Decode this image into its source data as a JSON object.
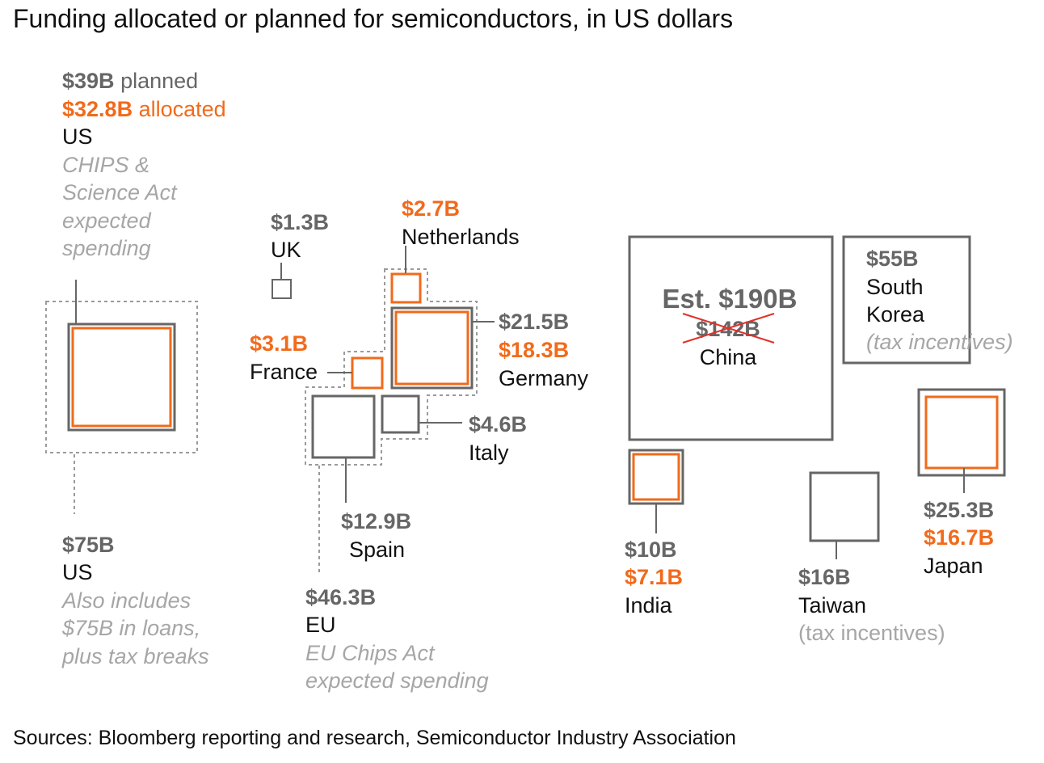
{
  "title": "Funding allocated or planned for semiconductors, in US dollars",
  "source": "Sources: Bloomberg reporting and research, Semiconductor Industry Association",
  "colors": {
    "allocated": "#f26a1b",
    "planned": "#666666",
    "note": "#a6a6a6"
  },
  "chart_data": {
    "type": "proportional squares",
    "entries": [
      {
        "region": "US",
        "planned_label": "$39B",
        "planned_word": "planned",
        "allocated_label": "$32.8B",
        "allocated_word": "allocated",
        "note": [
          "CHIPS &",
          "Science Act",
          "expected",
          "spending"
        ],
        "planned": 39,
        "allocated": 32.8
      },
      {
        "region": "US",
        "total_label": "$75B",
        "note": [
          "Also includes",
          "$75B in loans,",
          "plus tax breaks"
        ],
        "total": 75
      },
      {
        "region": "UK",
        "planned_label": "$1.3B",
        "planned": 1.3
      },
      {
        "region": "Netherlands",
        "allocated_label": "$2.7B",
        "allocated": 2.7
      },
      {
        "region": "France",
        "allocated_label": "$3.1B",
        "allocated": 3.1
      },
      {
        "region": "Germany",
        "planned_label": "$21.5B",
        "allocated_label": "$18.3B",
        "planned": 21.5,
        "allocated": 18.3
      },
      {
        "region": "Italy",
        "planned_label": "$4.6B",
        "planned": 4.6
      },
      {
        "region": "Spain",
        "planned_label": "$12.9B",
        "planned": 12.9
      },
      {
        "region": "EU",
        "total_label": "$46.3B",
        "note": [
          "EU Chips Act",
          "expected spending"
        ],
        "total": 46.3
      },
      {
        "region": "China",
        "estimate_label": "Est. $190B",
        "previous_label": "$142B",
        "planned": 190,
        "previous": 142
      },
      {
        "region": "South Korea",
        "region_lines": [
          "South",
          "Korea"
        ],
        "planned_label": "$55B",
        "note": [
          "(tax incentives)"
        ],
        "planned": 55
      },
      {
        "region": "India",
        "planned_label": "$10B",
        "allocated_label": "$7.1B",
        "planned": 10,
        "allocated": 7.1
      },
      {
        "region": "Taiwan",
        "planned_label": "$16B",
        "note": [
          "(tax incentives)"
        ],
        "planned": 16
      },
      {
        "region": "Japan",
        "planned_label": "$25.3B",
        "allocated_label": "$16.7B",
        "planned": 25.3,
        "allocated": 16.7
      }
    ]
  }
}
